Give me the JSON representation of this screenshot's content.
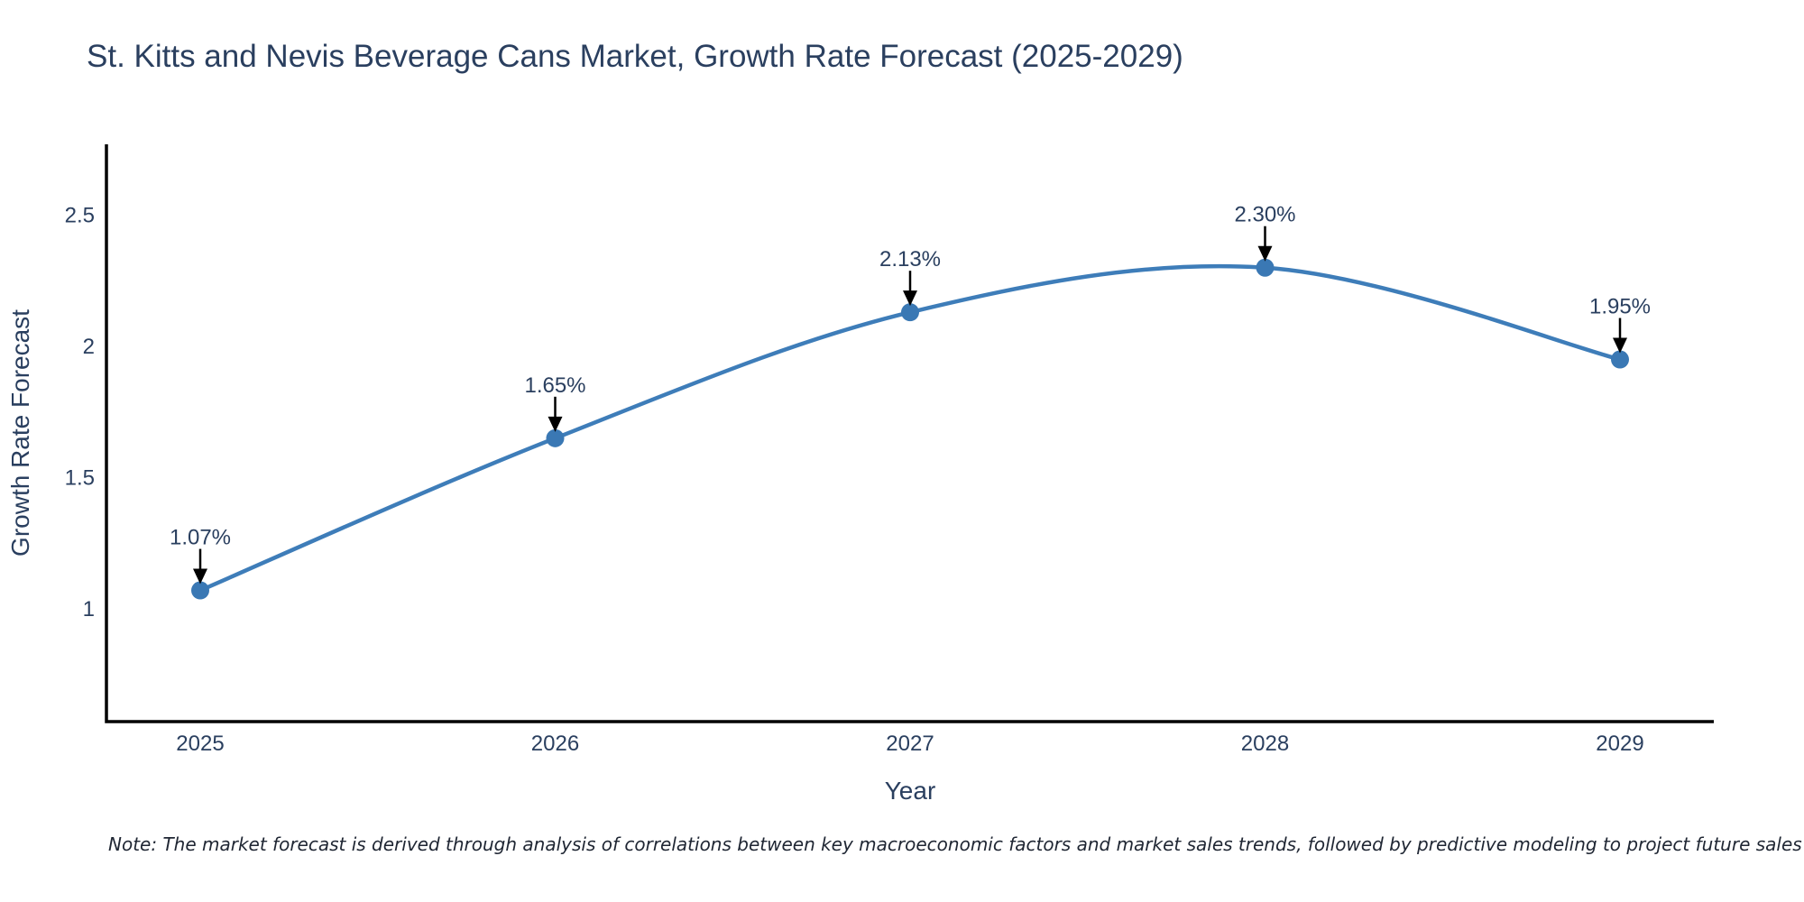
{
  "header": {
    "title": "St. Kitts and Nevis Beverage Cans Market, Growth Rate Forecast (2025-2029)"
  },
  "chart_data": {
    "type": "line",
    "title": "St. Kitts and Nevis Beverage Cans Market, Growth Rate Forecast (2025-2029)",
    "x": [
      "2025",
      "2026",
      "2027",
      "2028",
      "2029"
    ],
    "series": [
      {
        "name": "Growth Rate Forecast",
        "values": [
          1.07,
          1.65,
          2.13,
          2.3,
          1.95
        ]
      }
    ],
    "point_labels": [
      "1.07%",
      "1.65%",
      "2.13%",
      "2.30%",
      "1.95%"
    ],
    "xlabel": "Year",
    "ylabel": "Growth Rate Forecast",
    "yticks": [
      1,
      1.5,
      2,
      2.5
    ],
    "ytick_labels": [
      "1",
      "1.5",
      "2",
      "2.5"
    ],
    "ylim": [
      0.57,
      2.77
    ],
    "grid": false,
    "legend_position": "none",
    "line_shape": "spline",
    "colors": {
      "line": "#3e7db9",
      "marker": "#3a78b4",
      "axis": "#000000",
      "text": "#2a3f5f",
      "annotation_arrow": "#000000"
    }
  },
  "footer": {
    "note": "Note: The market forecast is derived through analysis of correlations between key macroeconomic factors and market sales trends, followed by predictive modeling to project future sales"
  }
}
